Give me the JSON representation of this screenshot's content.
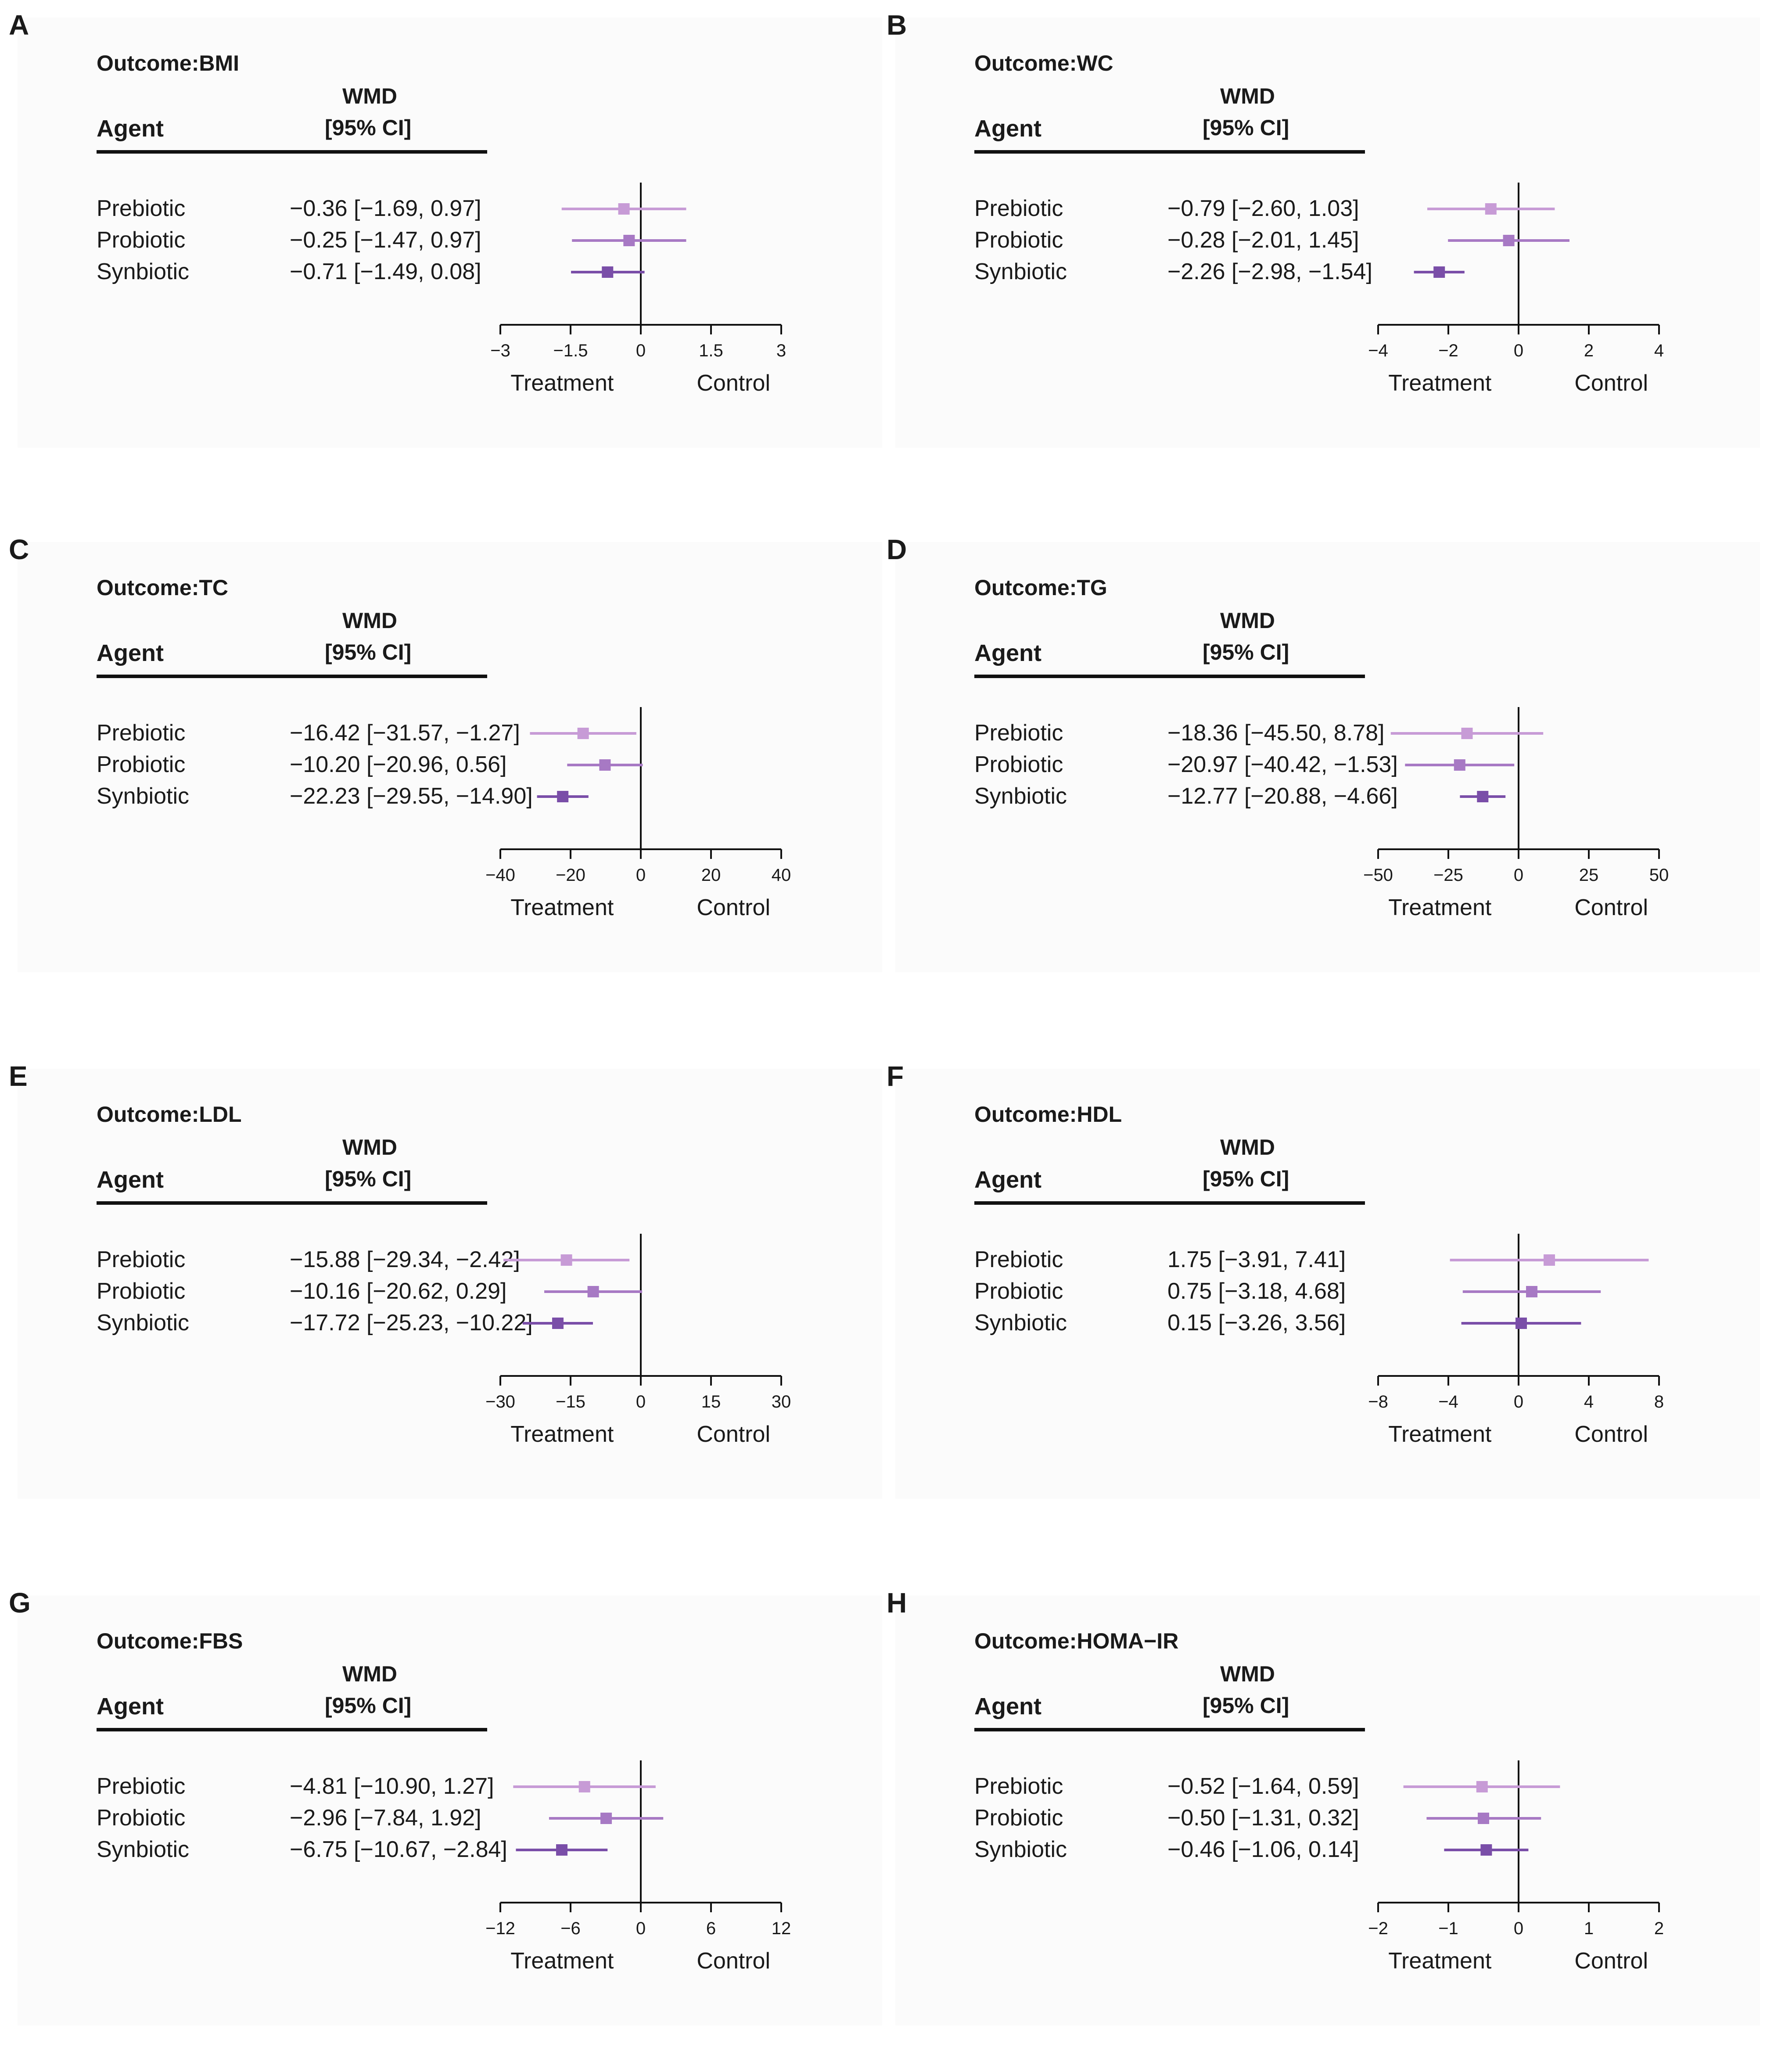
{
  "colors": {
    "prebiotic": "#c79bd6",
    "probiotic": "#a779c4",
    "synbiotic": "#7a4ea8",
    "axis": "#111111"
  },
  "chart_data": [
    {
      "type": "forest",
      "letter": "A",
      "outcome": "Outcome:BMI",
      "header": {
        "agent": "Agent",
        "wmd": "WMD",
        "ci": "[95% CI]"
      },
      "xlim": [
        -3,
        3
      ],
      "ticks": [
        -3,
        -1.5,
        0,
        1.5,
        3
      ],
      "tick_labels": [
        "−3",
        "−1.5",
        "0",
        "1.5",
        "3"
      ],
      "treatment_label": "Treatment",
      "control_label": "Control",
      "rows": [
        {
          "agent": "Prebiotic",
          "estimate": -0.36,
          "lower": -1.69,
          "upper": 0.97,
          "label": "−0.36 [−1.69, 0.97]"
        },
        {
          "agent": "Probiotic",
          "estimate": -0.25,
          "lower": -1.47,
          "upper": 0.97,
          "label": "−0.25 [−1.47, 0.97]"
        },
        {
          "agent": "Synbiotic",
          "estimate": -0.71,
          "lower": -1.49,
          "upper": 0.08,
          "label": "−0.71 [−1.49, 0.08]"
        }
      ]
    },
    {
      "type": "forest",
      "letter": "B",
      "outcome": "Outcome:WC",
      "header": {
        "agent": "Agent",
        "wmd": "WMD",
        "ci": "[95% CI]"
      },
      "xlim": [
        -4,
        4
      ],
      "ticks": [
        -4,
        -2,
        0,
        2,
        4
      ],
      "tick_labels": [
        "−4",
        "−2",
        "0",
        "2",
        "4"
      ],
      "treatment_label": "Treatment",
      "control_label": "Control",
      "rows": [
        {
          "agent": "Prebiotic",
          "estimate": -0.79,
          "lower": -2.6,
          "upper": 1.03,
          "label": "−0.79 [−2.60, 1.03]"
        },
        {
          "agent": "Probiotic",
          "estimate": -0.28,
          "lower": -2.01,
          "upper": 1.45,
          "label": "−0.28 [−2.01, 1.45]"
        },
        {
          "agent": "Synbiotic",
          "estimate": -2.26,
          "lower": -2.98,
          "upper": -1.54,
          "label": "−2.26 [−2.98, −1.54]"
        }
      ]
    },
    {
      "type": "forest",
      "letter": "C",
      "outcome": "Outcome:TC",
      "header": {
        "agent": "Agent",
        "wmd": "WMD",
        "ci": "[95% CI]"
      },
      "xlim": [
        -40,
        40
      ],
      "ticks": [
        -40,
        -20,
        0,
        20,
        40
      ],
      "tick_labels": [
        "−40",
        "−20",
        "0",
        "20",
        "40"
      ],
      "treatment_label": "Treatment",
      "control_label": "Control",
      "rows": [
        {
          "agent": "Prebiotic",
          "estimate": -16.42,
          "lower": -31.57,
          "upper": -1.27,
          "label": "−16.42 [−31.57, −1.27]"
        },
        {
          "agent": "Probiotic",
          "estimate": -10.2,
          "lower": -20.96,
          "upper": 0.56,
          "label": "−10.20 [−20.96, 0.56]"
        },
        {
          "agent": "Synbiotic",
          "estimate": -22.23,
          "lower": -29.55,
          "upper": -14.9,
          "label": "−22.23 [−29.55, −14.90]"
        }
      ]
    },
    {
      "type": "forest",
      "letter": "D",
      "outcome": "Outcome:TG",
      "header": {
        "agent": "Agent",
        "wmd": "WMD",
        "ci": "[95% CI]"
      },
      "xlim": [
        -50,
        50
      ],
      "ticks": [
        -50,
        -25,
        0,
        25,
        50
      ],
      "tick_labels": [
        "−50",
        "−25",
        "0",
        "25",
        "50"
      ],
      "treatment_label": "Treatment",
      "control_label": "Control",
      "rows": [
        {
          "agent": "Prebiotic",
          "estimate": -18.36,
          "lower": -45.5,
          "upper": 8.78,
          "label": "−18.36 [−45.50, 8.78]"
        },
        {
          "agent": "Probiotic",
          "estimate": -20.97,
          "lower": -40.42,
          "upper": -1.53,
          "label": "−20.97 [−40.42, −1.53]"
        },
        {
          "agent": "Synbiotic",
          "estimate": -12.77,
          "lower": -20.88,
          "upper": -4.66,
          "label": "−12.77 [−20.88, −4.66]"
        }
      ]
    },
    {
      "type": "forest",
      "letter": "E",
      "outcome": "Outcome:LDL",
      "header": {
        "agent": "Agent",
        "wmd": "WMD",
        "ci": "[95% CI]"
      },
      "xlim": [
        -30,
        30
      ],
      "ticks": [
        -30,
        -15,
        0,
        15,
        30
      ],
      "tick_labels": [
        "−30",
        "−15",
        "0",
        "15",
        "30"
      ],
      "treatment_label": "Treatment",
      "control_label": "Control",
      "rows": [
        {
          "agent": "Prebiotic",
          "estimate": -15.88,
          "lower": -29.34,
          "upper": -2.42,
          "label": "−15.88 [−29.34, −2.42]"
        },
        {
          "agent": "Probiotic",
          "estimate": -10.16,
          "lower": -20.62,
          "upper": 0.29,
          "label": "−10.16 [−20.62, 0.29]"
        },
        {
          "agent": "Synbiotic",
          "estimate": -17.72,
          "lower": -25.23,
          "upper": -10.22,
          "label": "−17.72 [−25.23, −10.22]"
        }
      ]
    },
    {
      "type": "forest",
      "letter": "F",
      "outcome": "Outcome:HDL",
      "header": {
        "agent": "Agent",
        "wmd": "WMD",
        "ci": "[95% CI]"
      },
      "xlim": [
        -8,
        8
      ],
      "ticks": [
        -8,
        -4,
        0,
        4,
        8
      ],
      "tick_labels": [
        "−8",
        "−4",
        "0",
        "4",
        "8"
      ],
      "treatment_label": "Treatment",
      "control_label": "Control",
      "rows": [
        {
          "agent": "Prebiotic",
          "estimate": 1.75,
          "lower": -3.91,
          "upper": 7.41,
          "label": "1.75 [−3.91, 7.41]"
        },
        {
          "agent": "Probiotic",
          "estimate": 0.75,
          "lower": -3.18,
          "upper": 4.68,
          "label": "0.75 [−3.18, 4.68]"
        },
        {
          "agent": "Synbiotic",
          "estimate": 0.15,
          "lower": -3.26,
          "upper": 3.56,
          "label": "0.15 [−3.26, 3.56]"
        }
      ]
    },
    {
      "type": "forest",
      "letter": "G",
      "outcome": "Outcome:FBS",
      "header": {
        "agent": "Agent",
        "wmd": "WMD",
        "ci": "[95% CI]"
      },
      "xlim": [
        -12,
        12
      ],
      "ticks": [
        -12,
        -6,
        0,
        6,
        12
      ],
      "tick_labels": [
        "−12",
        "−6",
        "0",
        "6",
        "12"
      ],
      "treatment_label": "Treatment",
      "control_label": "Control",
      "rows": [
        {
          "agent": "Prebiotic",
          "estimate": -4.81,
          "lower": -10.9,
          "upper": 1.27,
          "label": "−4.81 [−10.90, 1.27]"
        },
        {
          "agent": "Probiotic",
          "estimate": -2.96,
          "lower": -7.84,
          "upper": 1.92,
          "label": "−2.96 [−7.84, 1.92]"
        },
        {
          "agent": "Synbiotic",
          "estimate": -6.75,
          "lower": -10.67,
          "upper": -2.84,
          "label": "−6.75 [−10.67, −2.84]"
        }
      ]
    },
    {
      "type": "forest",
      "letter": "H",
      "outcome": "Outcome:HOMA−IR",
      "header": {
        "agent": "Agent",
        "wmd": "WMD",
        "ci": "[95% CI]"
      },
      "xlim": [
        -2,
        2
      ],
      "ticks": [
        -2,
        -1,
        0,
        1,
        2
      ],
      "tick_labels": [
        "−2",
        "−1",
        "0",
        "1",
        "2"
      ],
      "treatment_label": "Treatment",
      "control_label": "Control",
      "rows": [
        {
          "agent": "Prebiotic",
          "estimate": -0.52,
          "lower": -1.64,
          "upper": 0.59,
          "label": "−0.52 [−1.64, 0.59]"
        },
        {
          "agent": "Probiotic",
          "estimate": -0.5,
          "lower": -1.31,
          "upper": 0.32,
          "label": "−0.50 [−1.31, 0.32]"
        },
        {
          "agent": "Synbiotic",
          "estimate": -0.46,
          "lower": -1.06,
          "upper": 0.14,
          "label": "−0.46 [−1.06, 0.14]"
        }
      ]
    }
  ]
}
